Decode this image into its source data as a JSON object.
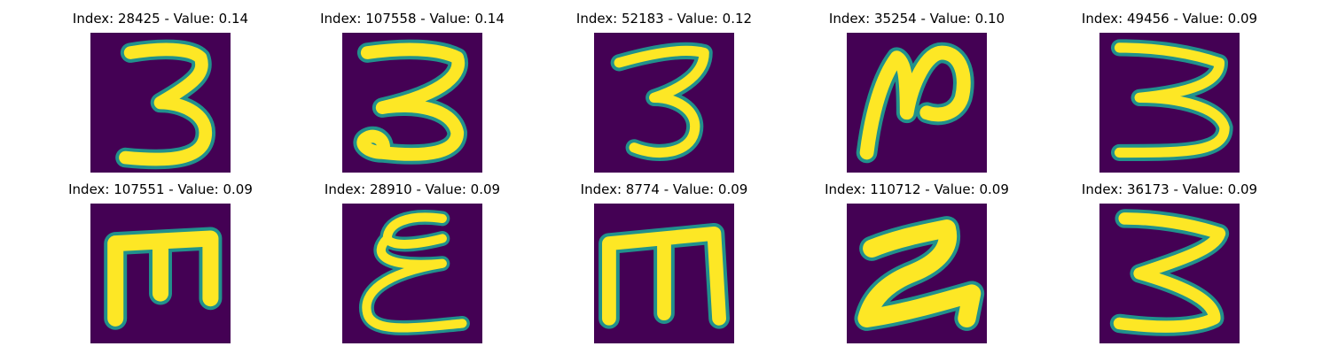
{
  "colors": {
    "background": "#440154",
    "stroke": "#fde725",
    "edge": "#21918c"
  },
  "panels": [
    {
      "title": "Index: 28425 - Value: 0.14",
      "glyph_icon": "digit-3-icon"
    },
    {
      "title": "Index: 107558 - Value: 0.14",
      "glyph_icon": "digit-3-loop-icon"
    },
    {
      "title": "Index: 52183 - Value: 0.12",
      "glyph_icon": "digit-3-icon"
    },
    {
      "title": "Index: 35254 - Value: 0.10",
      "glyph_icon": "rotated-3-icon"
    },
    {
      "title": "Index: 49456 - Value: 0.09",
      "glyph_icon": "digit-3-icon"
    },
    {
      "title": "Index: 107551 - Value: 0.09",
      "glyph_icon": "letter-e-rotated-icon"
    },
    {
      "title": "Index: 28910 - Value: 0.09",
      "glyph_icon": "epsilon-icon"
    },
    {
      "title": "Index: 8774 - Value: 0.09",
      "glyph_icon": "letter-m-icon"
    },
    {
      "title": "Index: 110712 - Value: 0.09",
      "glyph_icon": "rotated-3-icon"
    },
    {
      "title": "Index: 36173 - Value: 0.09",
      "glyph_icon": "digit-3-icon"
    }
  ]
}
